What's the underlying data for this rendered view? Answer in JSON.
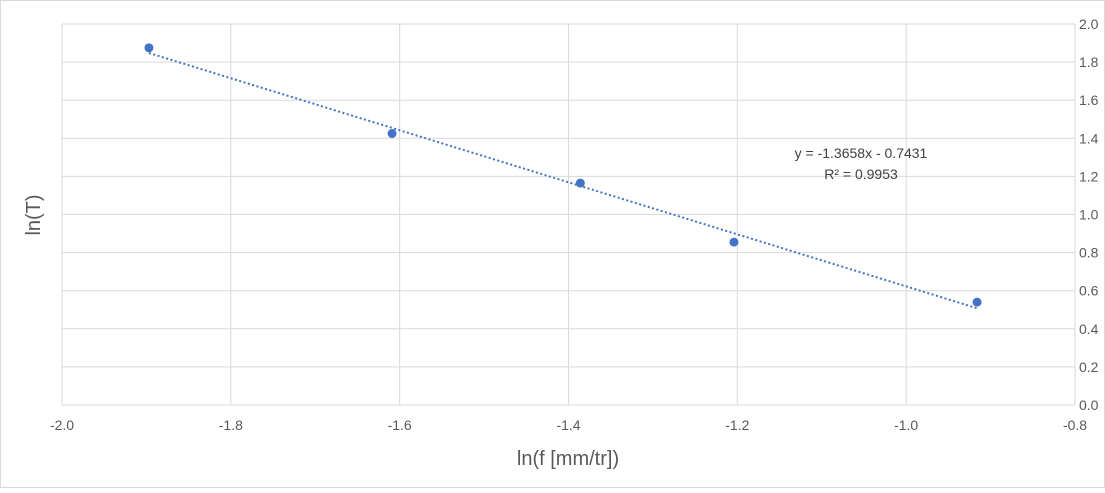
{
  "chart_data": {
    "type": "scatter",
    "title": "",
    "xlabel": "ln(f [mm/tr])",
    "ylabel": "ln(T)",
    "xlim": [
      -2.0,
      -0.8
    ],
    "ylim": [
      0.0,
      2.0
    ],
    "x_ticks": [
      "-2.0",
      "-1.8",
      "-1.6",
      "-1.4",
      "-1.2",
      "-1.0",
      "-0.8"
    ],
    "y_ticks": [
      "0.0",
      "0.2",
      "0.4",
      "0.6",
      "0.8",
      "1.0",
      "1.2",
      "1.4",
      "1.6",
      "1.8",
      "2.0"
    ],
    "y_axis_side": "right",
    "grid": true,
    "series": [
      {
        "x": [
          -1.897,
          -1.609,
          -1.386,
          -1.204,
          -0.916
        ],
        "y": [
          1.875,
          1.425,
          1.165,
          0.855,
          0.54
        ],
        "color": "#4472C4"
      }
    ],
    "trendline": {
      "type": "linear",
      "slope": -1.3658,
      "intercept": -0.7431,
      "style": "dotted",
      "color": "#4472C4",
      "x_range": [
        -1.897,
        -0.916
      ]
    },
    "annotations": {
      "equation": "y = -1.3658x - 0.7431",
      "r_squared": "R² = 0.9953"
    }
  }
}
